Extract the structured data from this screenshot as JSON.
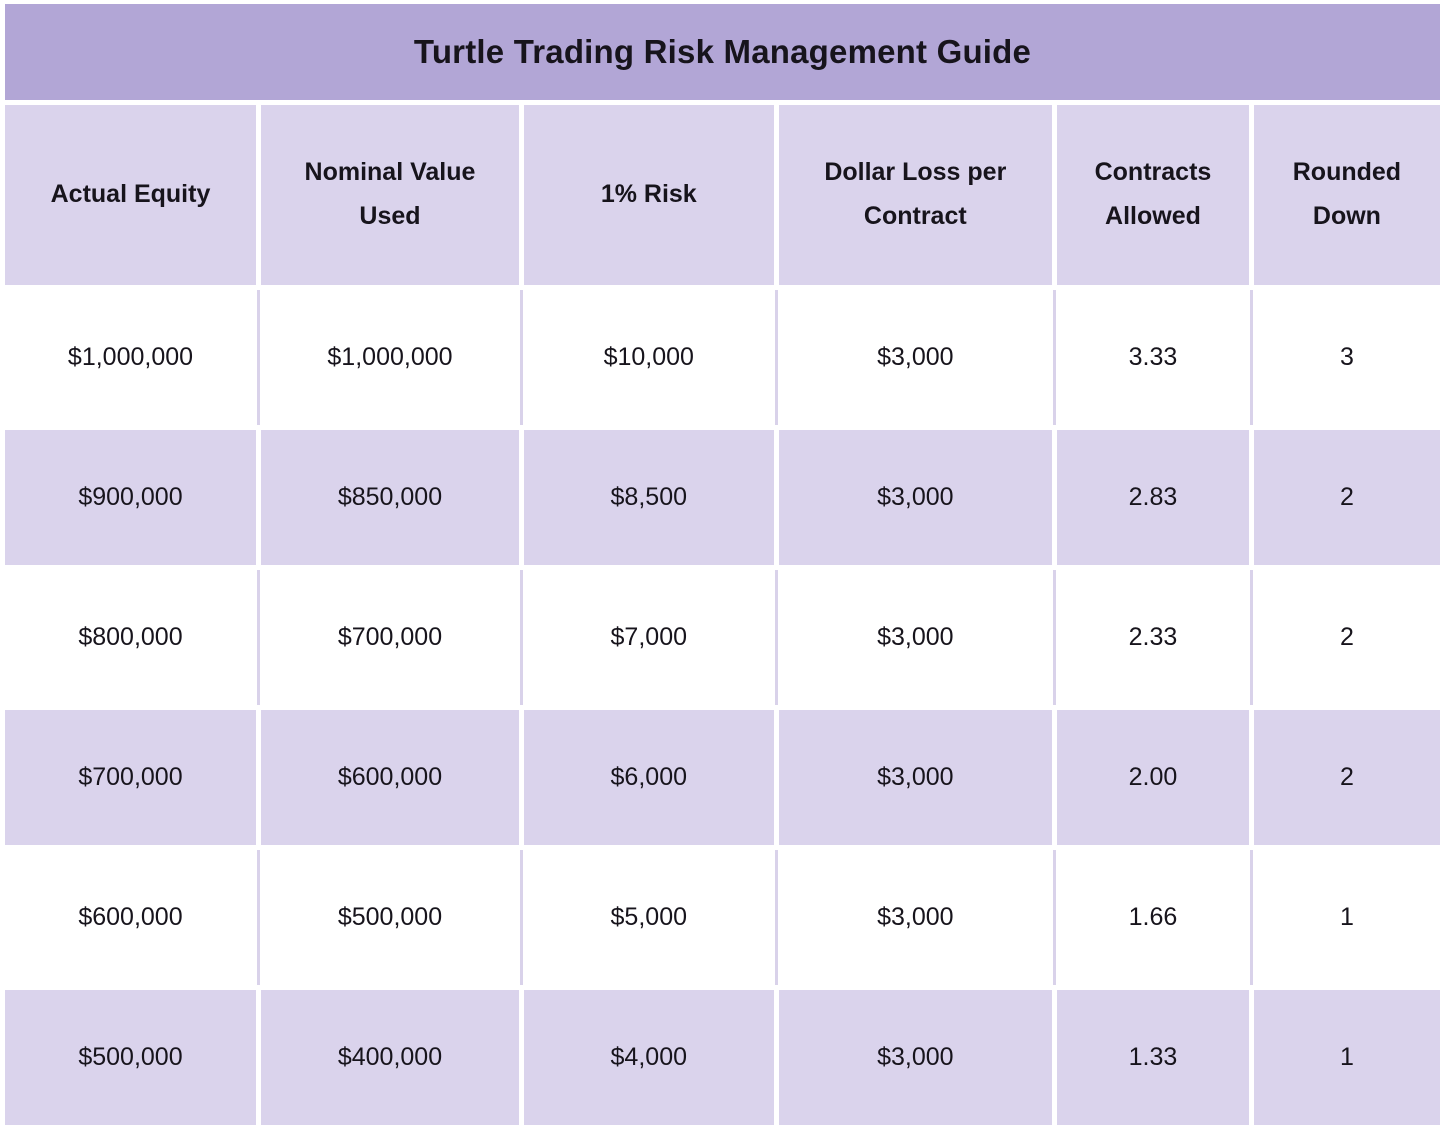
{
  "title": "Turtle Trading Risk Management Guide",
  "colors": {
    "title_bg": "#b2a6d6",
    "header_bg": "#dad3ec",
    "row_alt_bg": "#dad3ec",
    "row_bg": "#ffffff",
    "divider": "#d9d2ea",
    "text": "#17141c"
  },
  "table": {
    "headers": [
      "Actual Equity",
      "Nominal Value Used",
      "1% Risk",
      "Dollar Loss per Contract",
      "Contracts Allowed",
      "Rounded Down"
    ],
    "rows": [
      [
        "$1,000,000",
        "$1,000,000",
        "$10,000",
        "$3,000",
        "3.33",
        "3"
      ],
      [
        "$900,000",
        "$850,000",
        "$8,500",
        "$3,000",
        "2.83",
        "2"
      ],
      [
        "$800,000",
        "$700,000",
        "$7,000",
        "$3,000",
        "2.33",
        "2"
      ],
      [
        "$700,000",
        "$600,000",
        "$6,000",
        "$3,000",
        "2.00",
        "2"
      ],
      [
        "$600,000",
        "$500,000",
        "$5,000",
        "$3,000",
        "1.66",
        "1"
      ],
      [
        "$500,000",
        "$400,000",
        "$4,000",
        "$3,000",
        "1.33",
        "1"
      ]
    ]
  },
  "chart_data": {
    "type": "table",
    "title": "Turtle Trading Risk Management Guide",
    "columns": [
      "Actual Equity",
      "Nominal Value Used",
      "1% Risk",
      "Dollar Loss per Contract",
      "Contracts Allowed",
      "Rounded Down"
    ],
    "rows": [
      {
        "actual_equity": 1000000,
        "nominal_value_used": 1000000,
        "one_percent_risk": 10000,
        "dollar_loss_per_contract": 3000,
        "contracts_allowed": 3.33,
        "rounded_down": 3
      },
      {
        "actual_equity": 900000,
        "nominal_value_used": 850000,
        "one_percent_risk": 8500,
        "dollar_loss_per_contract": 3000,
        "contracts_allowed": 2.83,
        "rounded_down": 2
      },
      {
        "actual_equity": 800000,
        "nominal_value_used": 700000,
        "one_percent_risk": 7000,
        "dollar_loss_per_contract": 3000,
        "contracts_allowed": 2.33,
        "rounded_down": 2
      },
      {
        "actual_equity": 700000,
        "nominal_value_used": 600000,
        "one_percent_risk": 6000,
        "dollar_loss_per_contract": 3000,
        "contracts_allowed": 2.0,
        "rounded_down": 2
      },
      {
        "actual_equity": 600000,
        "nominal_value_used": 500000,
        "one_percent_risk": 5000,
        "dollar_loss_per_contract": 3000,
        "contracts_allowed": 1.66,
        "rounded_down": 1
      },
      {
        "actual_equity": 500000,
        "nominal_value_used": 400000,
        "one_percent_risk": 4000,
        "dollar_loss_per_contract": 3000,
        "contracts_allowed": 1.33,
        "rounded_down": 1
      }
    ]
  }
}
